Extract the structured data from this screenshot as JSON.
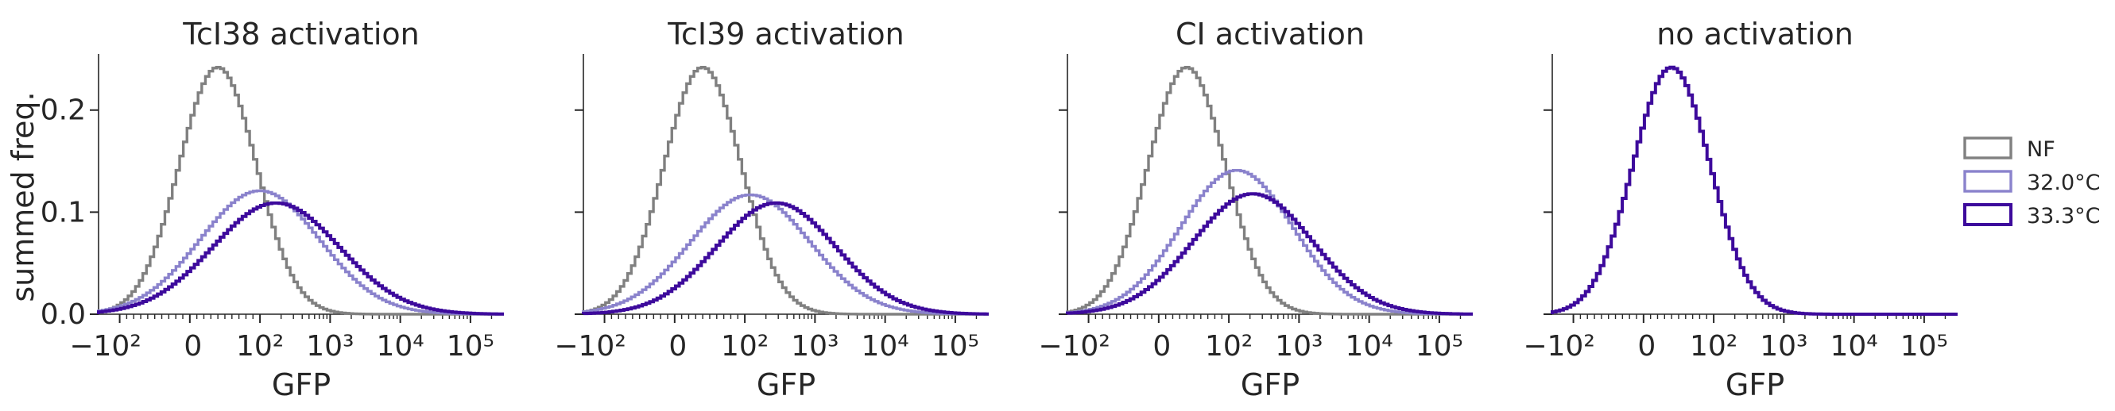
{
  "figure": {
    "ylabel": "summed freq.",
    "xlabel": "GFP"
  },
  "colors": {
    "NF": "#808080",
    "32.0°C": "#8a82cc",
    "33.3°C": "#3d0a9c"
  },
  "legend": {
    "placement": "right",
    "entries": [
      "NF",
      "32.0°C",
      "33.3°C"
    ]
  },
  "chart_data": [
    {
      "type": "histogram",
      "title": "TcI38 activation",
      "xscale": "symlog",
      "xlim": [
        -200,
        300000
      ],
      "ylim": [
        0,
        0.255
      ],
      "yticks": [
        "0.0",
        "0.1",
        "0.2"
      ],
      "xticks": [
        "−10²",
        "0",
        "10²",
        "10³",
        "10⁴",
        "10⁵"
      ],
      "series": [
        {
          "name": "NF",
          "peak_x": 40,
          "peak_y": 0.242,
          "sigma": 0.55
        },
        {
          "name": "32.0°C",
          "peak_x": 100,
          "peak_y": 0.121,
          "sigma": 0.85
        },
        {
          "name": "33.3°C",
          "peak_x": 170,
          "peak_y": 0.109,
          "sigma": 0.9
        }
      ]
    },
    {
      "type": "histogram",
      "title": "TcI39 activation",
      "xscale": "symlog",
      "xlim": [
        -200,
        300000
      ],
      "ylim": [
        0,
        0.255
      ],
      "yticks": [
        "0.0",
        "0.1",
        "0.2"
      ],
      "xticks": [
        "−10²",
        "0",
        "10²",
        "10³",
        "10⁴",
        "10⁵"
      ],
      "series": [
        {
          "name": "NF",
          "peak_x": 40,
          "peak_y": 0.242,
          "sigma": 0.55
        },
        {
          "name": "32.0°C",
          "peak_x": 120,
          "peak_y": 0.117,
          "sigma": 0.85
        },
        {
          "name": "33.3°C",
          "peak_x": 280,
          "peak_y": 0.109,
          "sigma": 0.85
        }
      ]
    },
    {
      "type": "histogram",
      "title": "CI activation",
      "xscale": "symlog",
      "xlim": [
        -200,
        300000
      ],
      "ylim": [
        0,
        0.255
      ],
      "yticks": [
        "0.0",
        "0.1",
        "0.2"
      ],
      "xticks": [
        "−10²",
        "0",
        "10²",
        "10³",
        "10⁴",
        "10⁵"
      ],
      "series": [
        {
          "name": "NF",
          "peak_x": 40,
          "peak_y": 0.242,
          "sigma": 0.55
        },
        {
          "name": "32.0°C",
          "peak_x": 130,
          "peak_y": 0.141,
          "sigma": 0.8
        },
        {
          "name": "33.3°C",
          "peak_x": 220,
          "peak_y": 0.118,
          "sigma": 0.85
        }
      ]
    },
    {
      "type": "histogram",
      "title": "no activation",
      "xscale": "symlog",
      "xlim": [
        -200,
        300000
      ],
      "ylim": [
        0,
        0.255
      ],
      "yticks": [
        "0.0",
        "0.1",
        "0.2"
      ],
      "xticks": [
        "−10²",
        "0",
        "10²",
        "10³",
        "10⁴",
        "10⁵"
      ],
      "series": [
        {
          "name": "NF",
          "peak_x": 40,
          "peak_y": 0.242,
          "sigma": 0.55
        },
        {
          "name": "32.0°C",
          "peak_x": 40,
          "peak_y": 0.242,
          "sigma": 0.55
        },
        {
          "name": "33.3°C",
          "peak_x": 40,
          "peak_y": 0.242,
          "sigma": 0.55
        }
      ]
    }
  ]
}
